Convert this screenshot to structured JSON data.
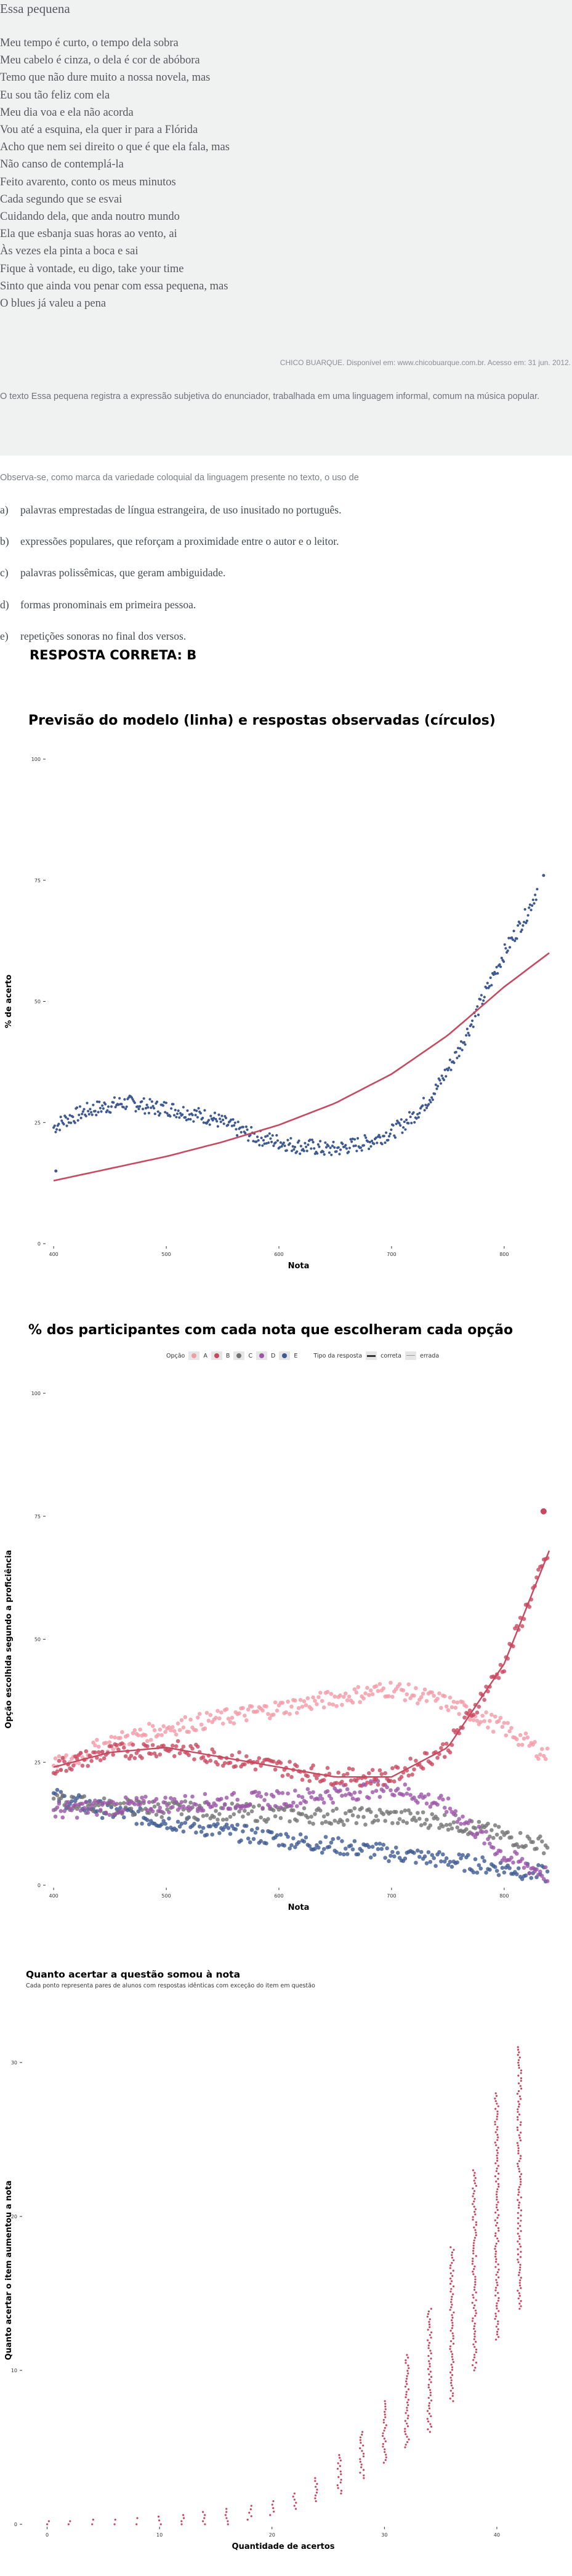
{
  "poem": {
    "title": "Essa pequena",
    "lines": [
      "Meu tempo é curto, o tempo dela sobra",
      "Meu cabelo é cinza, o dela é cor de abóbora",
      "Temo que não dure muito a nossa novela, mas",
      "Eu sou tão feliz com ela",
      "Meu dia voa e ela não acorda",
      "Vou até a esquina, ela quer ir para a Flórida",
      "Acho que nem sei direito o que é que ela fala, mas",
      "Não canso de contemplá-la",
      "Feito avarento, conto os meus minutos",
      "Cada segundo que se esvai",
      "Cuidando dela, que anda noutro mundo",
      "Ela que esbanja suas horas ao vento, ai",
      "Às vezes ela pinta a boca e sai",
      "Fique à vontade, eu digo, take your time",
      "Sinto que ainda vou penar com essa pequena, mas",
      "O blues já valeu a pena"
    ],
    "source": "CHICO BUARQUE. Disponível em: www.chicobuarque.com.br. Acesso em: 31 jun. 2012.",
    "context": "O texto Essa pequena registra a expressão subjetiva do enunciador, trabalhada em uma linguagem informal, comum na música popular."
  },
  "question": {
    "command": "Observa-se, como marca da variedade coloquial da linguagem presente no texto, o uso de",
    "options": [
      {
        "letter": "a)",
        "text": "palavras emprestadas de língua estrangeira, de uso inusitado no português."
      },
      {
        "letter": "b)",
        "text": "expressões populares, que reforçam a proximidade entre o autor e o leitor."
      },
      {
        "letter": "c)",
        "text": "palavras polissêmicas, que geram ambiguidade."
      },
      {
        "letter": "d)",
        "text": "formas pronominais em primeira pessoa."
      },
      {
        "letter": "e)",
        "text": "repetições sonoras no final dos versos."
      }
    ],
    "answer_label": "RESPOSTA CORRETA: B"
  },
  "colors": {
    "red": "#c8495f",
    "pink": "#f29aa6",
    "blue": "#3f5a91",
    "purple": "#9b55a8",
    "grey": "#737373"
  },
  "chart_data": [
    {
      "type": "scatter",
      "title": "Previsão do modelo (linha) e respostas observadas (círculos)",
      "xlabel": "Nota",
      "ylabel": "% de acerto",
      "xticks": [
        "400",
        "500",
        "600",
        "700",
        "800"
      ],
      "yticks": [
        "0",
        "25",
        "50",
        "75",
        "100"
      ],
      "xlim": [
        395,
        840
      ],
      "ylim": [
        0,
        100
      ],
      "series": [
        {
          "points_x": [
            400,
            410,
            420,
            430,
            440,
            450,
            460,
            470,
            480,
            490,
            500,
            510,
            520,
            530,
            540,
            550,
            560,
            570,
            580,
            590,
            600,
            610,
            620,
            630,
            640,
            650,
            660,
            670,
            680,
            690,
            700,
            710,
            720,
            730,
            740,
            750,
            760,
            770,
            780,
            790,
            800,
            810,
            820,
            835
          ],
          "points_y": [
            24,
            25.5,
            26.5,
            27.5,
            28,
            28.5,
            29,
            29,
            28.5,
            28,
            28,
            27.5,
            27,
            26.5,
            26,
            25,
            24,
            23,
            22,
            21.5,
            21,
            20.5,
            20,
            20,
            19.5,
            19.5,
            20,
            20.5,
            21,
            22,
            23,
            24.5,
            26.5,
            29,
            32,
            36,
            40,
            45,
            50,
            55,
            60,
            64,
            68,
            76
          ]
        },
        {
          "curve_x": [
            400,
            450,
            500,
            550,
            600,
            650,
            700,
            750,
            800,
            840
          ],
          "curve_y": [
            13,
            15.5,
            18,
            21,
            24.5,
            29,
            35,
            43,
            53,
            60
          ]
        }
      ]
    },
    {
      "type": "scatter",
      "title": "% dos participantes com cada nota que escolheram cada opção",
      "xlabel": "Nota",
      "ylabel": "Opção escolhida segundo a proficiência",
      "xticks": [
        "400",
        "500",
        "600",
        "700",
        "800"
      ],
      "yticks": [
        "0",
        "25",
        "50",
        "75",
        "100"
      ],
      "xlim": [
        395,
        840
      ],
      "ylim": [
        0,
        100
      ],
      "legend": {
        "option_label": "Opção",
        "options": [
          "A",
          "B",
          "C",
          "D",
          "E"
        ],
        "type_label": "Tipo da resposta",
        "types": [
          "correta",
          "errada"
        ]
      },
      "series": [
        {
          "name": "A",
          "x": [
            400,
            450,
            500,
            550,
            600,
            650,
            700,
            750,
            800,
            840
          ],
          "y": [
            24,
            29,
            32,
            34,
            36,
            38,
            40,
            37,
            32,
            26
          ]
        },
        {
          "name": "B",
          "x": [
            400,
            450,
            500,
            550,
            600,
            650,
            700,
            750,
            800,
            840
          ],
          "y": [
            24,
            27,
            28,
            26,
            24,
            22,
            22,
            28,
            45,
            68
          ]
        },
        {
          "name": "C",
          "x": [
            400,
            450,
            500,
            550,
            600,
            650,
            700,
            750,
            800,
            840
          ],
          "y": [
            17,
            16,
            15.5,
            15,
            14.5,
            14,
            14,
            13,
            10,
            8
          ]
        },
        {
          "name": "D",
          "x": [
            400,
            450,
            500,
            550,
            600,
            650,
            700,
            750,
            800,
            840
          ],
          "y": [
            15,
            16,
            16.5,
            17,
            17.5,
            18.5,
            20,
            16,
            6,
            2
          ]
        },
        {
          "name": "E",
          "x": [
            400,
            450,
            500,
            550,
            600,
            650,
            700,
            750,
            800,
            840
          ],
          "y": [
            18,
            15,
            13,
            11,
            9.5,
            8,
            6.5,
            5,
            3.5,
            2
          ]
        }
      ]
    },
    {
      "type": "scatter",
      "title": "Quanto acertar a questão somou à nota",
      "subtitle": "Cada ponto representa pares de alunos com respostas idênticas com exceção do item em questão",
      "xlabel": "Quantidade de acertos",
      "ylabel": "Quanto acertar o item aumentou a nota",
      "xticks": [
        "0",
        "10",
        "20",
        "30",
        "40"
      ],
      "yticks": [
        "0",
        "10",
        "20",
        "30"
      ],
      "xlim": [
        -2,
        44
      ],
      "ylim": [
        0,
        33
      ],
      "x": [
        0,
        2,
        4,
        6,
        8,
        10,
        12,
        14,
        16,
        18,
        20,
        22,
        24,
        26,
        28,
        30,
        32,
        34,
        36,
        38,
        40,
        42
      ],
      "y_min": [
        0,
        0,
        0,
        0,
        0,
        0,
        0,
        0,
        0,
        0.3,
        0.6,
        1,
        1.5,
        2,
        3,
        4,
        5,
        6,
        8,
        10,
        12,
        14
      ],
      "y_max": [
        0.2,
        0.2,
        0.3,
        0.3,
        0.4,
        0.5,
        0.6,
        0.8,
        1,
        1.2,
        1.5,
        2,
        3,
        4.5,
        6,
        8,
        11,
        14,
        18,
        23,
        28,
        31
      ]
    }
  ]
}
